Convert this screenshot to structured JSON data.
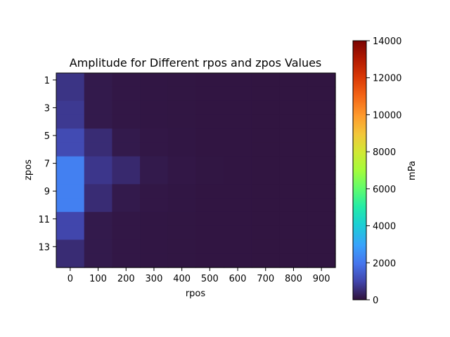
{
  "chart_data": {
    "type": "heatmap",
    "title": "Amplitude for Different rpos and zpos Values",
    "xlabel": "rpos",
    "ylabel": "zpos",
    "x_ticks": [
      "0",
      "100",
      "200",
      "300",
      "400",
      "500",
      "600",
      "700",
      "800",
      "900"
    ],
    "y_ticks": [
      "1",
      "3",
      "5",
      "7",
      "9",
      "11",
      "13"
    ],
    "colorbar": {
      "label": "mPa",
      "range": [
        0,
        14000
      ],
      "ticks": [
        "0",
        "2000",
        "4000",
        "6000",
        "8000",
        "10000",
        "12000",
        "14000"
      ],
      "colormap": "turbo"
    },
    "rpos": [
      0,
      100,
      200,
      300,
      400,
      500,
      600,
      700,
      800,
      900
    ],
    "zpos": [
      1,
      2,
      3,
      4,
      5,
      6,
      7,
      8,
      9,
      10,
      11,
      12,
      13,
      14
    ],
    "values": [
      [
        650,
        150,
        100,
        80,
        70,
        60,
        60,
        50,
        50,
        50
      ],
      [
        650,
        150,
        100,
        80,
        70,
        60,
        60,
        50,
        50,
        50
      ],
      [
        750,
        150,
        100,
        80,
        70,
        60,
        60,
        50,
        50,
        50
      ],
      [
        750,
        150,
        100,
        80,
        70,
        60,
        60,
        50,
        50,
        50
      ],
      [
        1100,
        500,
        150,
        100,
        80,
        60,
        60,
        50,
        50,
        50
      ],
      [
        1100,
        500,
        150,
        100,
        80,
        60,
        60,
        50,
        50,
        50
      ],
      [
        2200,
        700,
        450,
        150,
        100,
        70,
        60,
        50,
        50,
        50
      ],
      [
        2200,
        700,
        450,
        150,
        100,
        70,
        60,
        50,
        50,
        50
      ],
      [
        2200,
        500,
        150,
        100,
        80,
        60,
        60,
        50,
        50,
        50
      ],
      [
        2200,
        500,
        150,
        100,
        80,
        60,
        60,
        50,
        50,
        50
      ],
      [
        1000,
        150,
        100,
        80,
        70,
        60,
        60,
        50,
        50,
        50
      ],
      [
        1000,
        150,
        100,
        80,
        70,
        60,
        60,
        50,
        50,
        50
      ],
      [
        500,
        150,
        100,
        80,
        70,
        60,
        60,
        50,
        50,
        50
      ],
      [
        500,
        150,
        100,
        80,
        70,
        60,
        60,
        50,
        50,
        50
      ]
    ]
  }
}
